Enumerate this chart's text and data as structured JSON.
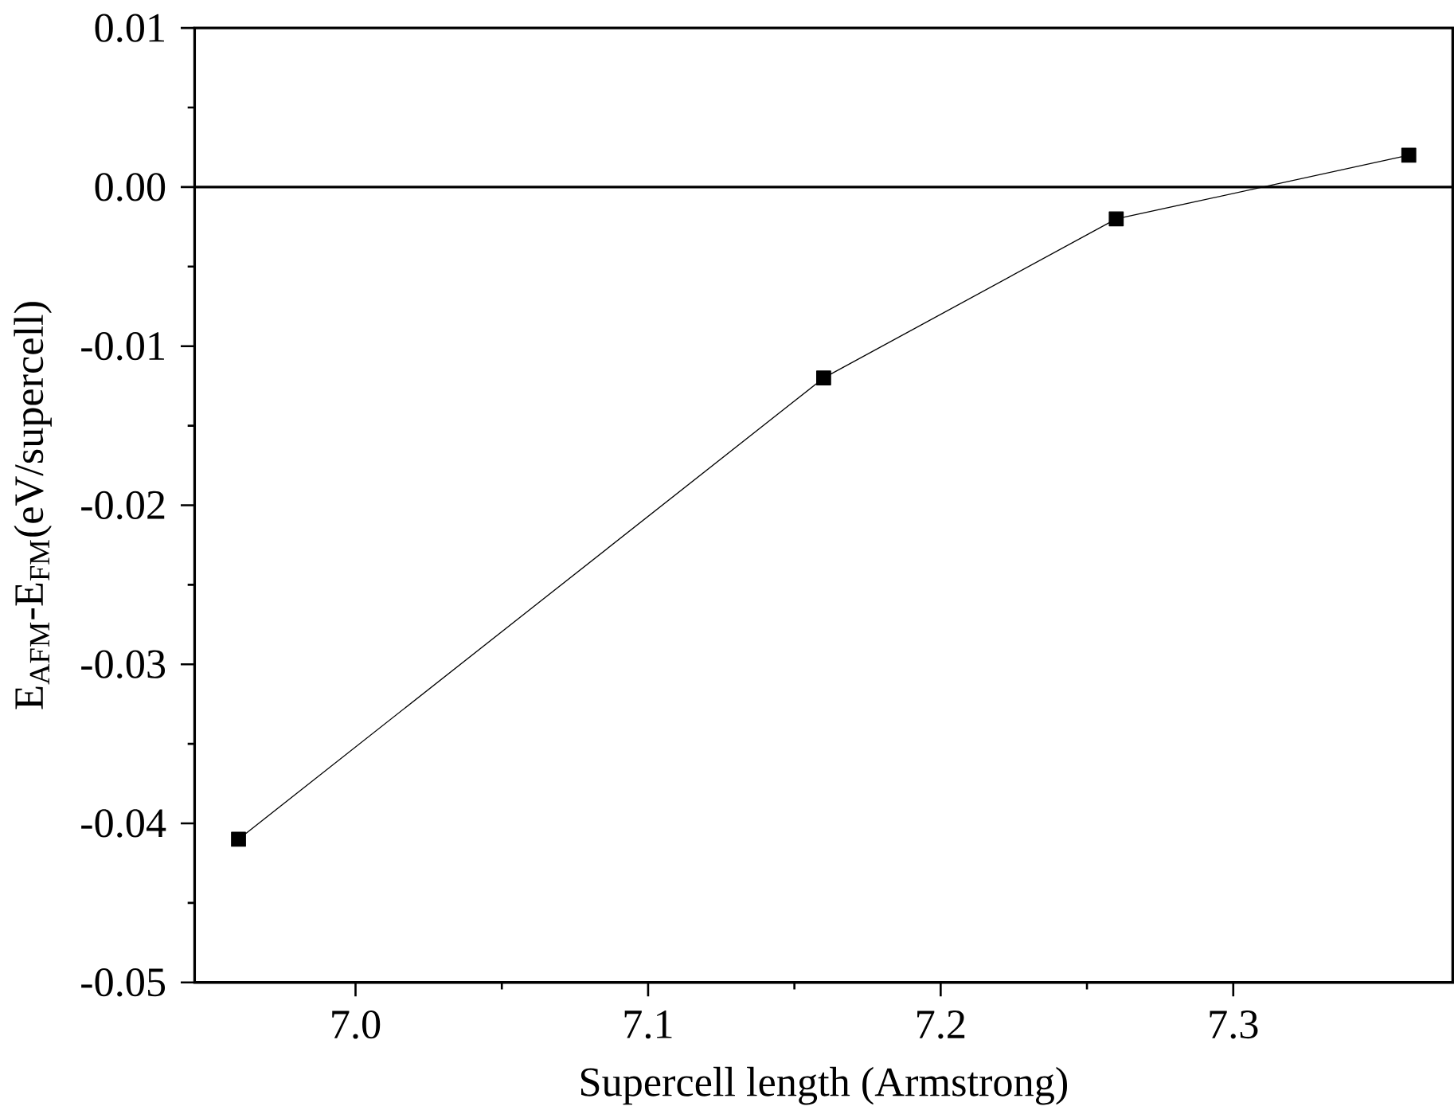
{
  "chart_data": {
    "type": "line",
    "xlabel": "Supercell length (Armstrong)",
    "ylabel": "E$_{AFM}$-E$_{FM}$(eV/supercell)",
    "x": [
      6.96,
      7.16,
      7.26,
      7.36
    ],
    "series": [
      {
        "color": "#000000",
        "values": [
          -0.041,
          -0.012,
          -0.002,
          0.002
        ]
      }
    ],
    "xlim": [
      6.945,
      7.375
    ],
    "ylim": [
      -0.05,
      0.01
    ],
    "xticks": [
      {
        "value": 7.0,
        "label": "7.0"
      },
      {
        "value": 7.1,
        "label": "7.1"
      },
      {
        "value": 7.2,
        "label": "7.2"
      },
      {
        "value": 7.3,
        "label": "7.3"
      }
    ],
    "yticks": [
      {
        "value": -0.05,
        "label": "-0.05"
      },
      {
        "value": -0.04,
        "label": "-0.04"
      },
      {
        "value": -0.03,
        "label": "-0.03"
      },
      {
        "value": -0.02,
        "label": "-0.02"
      },
      {
        "value": -0.01,
        "label": "-0.01"
      },
      {
        "value": 0.0,
        "label": "0.00"
      },
      {
        "value": 0.01,
        "label": "0.01"
      }
    ],
    "ref_lines": [
      {
        "axis": "y",
        "value": 0,
        "color": "#000000"
      }
    ],
    "marker": "square"
  }
}
